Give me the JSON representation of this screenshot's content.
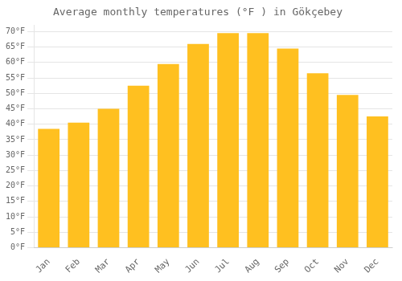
{
  "chart_data": {
    "type": "bar",
    "title": "Average monthly temperatures (°F ) in Gökçebey",
    "categories": [
      "Jan",
      "Feb",
      "Mar",
      "Apr",
      "May",
      "Jun",
      "Jul",
      "Aug",
      "Sep",
      "Oct",
      "Nov",
      "Dec"
    ],
    "values": [
      38.5,
      40.5,
      45.0,
      52.5,
      59.5,
      66.0,
      69.5,
      69.5,
      64.5,
      56.5,
      49.5,
      42.5
    ],
    "color": "#FFC020",
    "ylim": [
      0,
      72
    ],
    "yticks": [
      {
        "value": 0,
        "label": "0°F"
      },
      {
        "value": 5,
        "label": "5°F"
      },
      {
        "value": 10,
        "label": "10°F"
      },
      {
        "value": 15,
        "label": "15°F"
      },
      {
        "value": 20,
        "label": "20°F"
      },
      {
        "value": 25,
        "label": "25°F"
      },
      {
        "value": 30,
        "label": "30°F"
      },
      {
        "value": 35,
        "label": "35°F"
      },
      {
        "value": 40,
        "label": "40°F"
      },
      {
        "value": 45,
        "label": "45°F"
      },
      {
        "value": 50,
        "label": "50°F"
      },
      {
        "value": 55,
        "label": "55°F"
      },
      {
        "value": 60,
        "label": "60°F"
      },
      {
        "value": 65,
        "label": "65°F"
      },
      {
        "value": 70,
        "label": "70°F"
      }
    ],
    "grid": true
  }
}
